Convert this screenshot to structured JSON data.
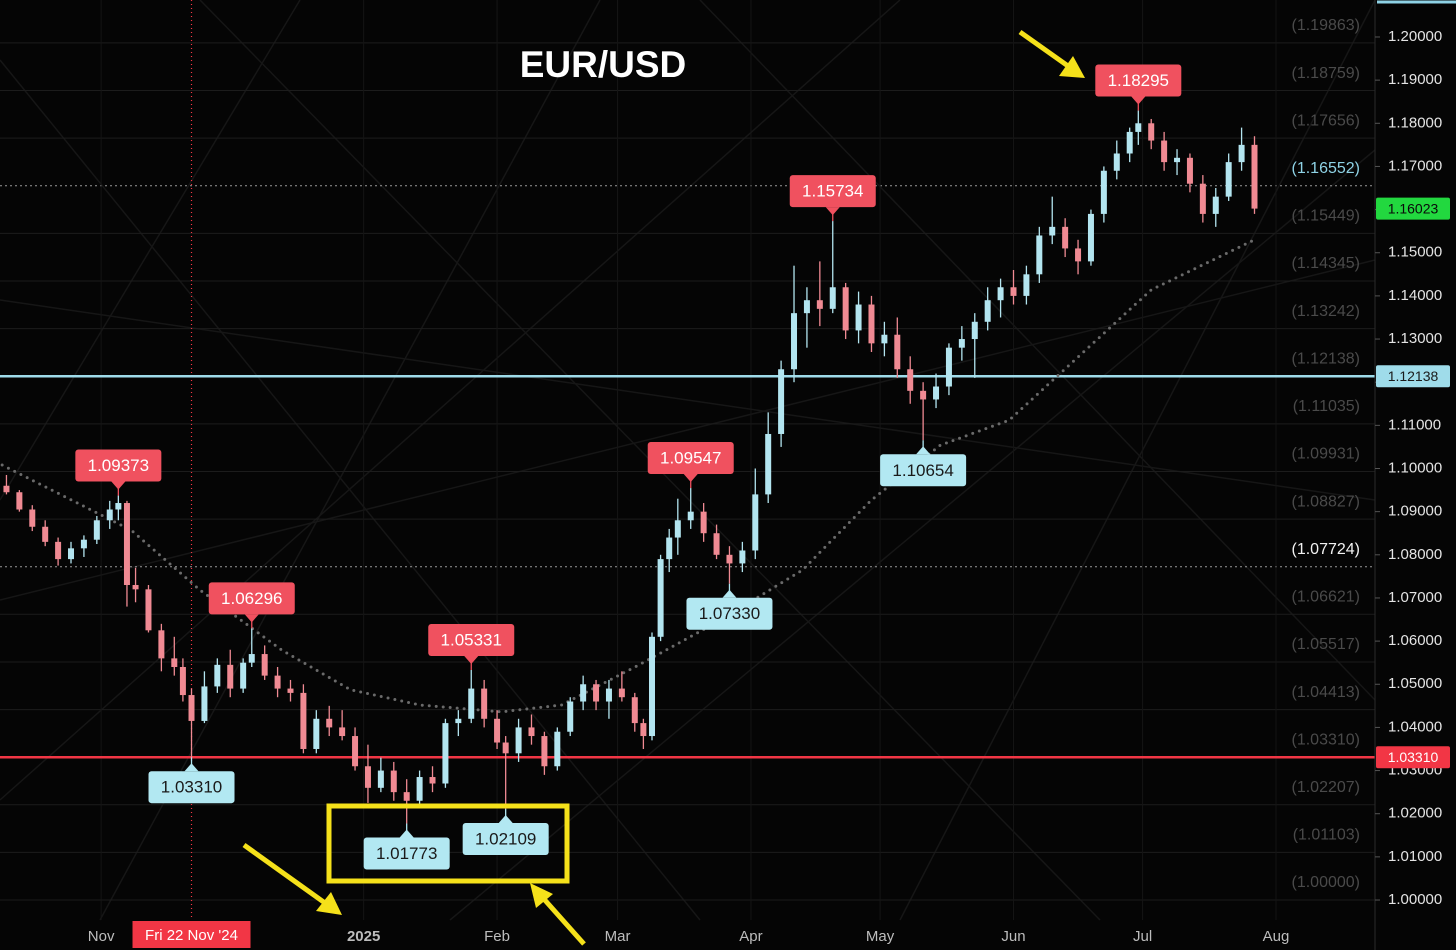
{
  "chart_data": {
    "type": "candlestick",
    "title": "EUR/USD",
    "xlim": [
      -23.5,
      296
    ],
    "ylim": [
      0.99537,
      1.20857
    ],
    "xticks": [
      {
        "value": 0,
        "label": "Nov"
      },
      {
        "value": 61,
        "label": "2025",
        "bold": true
      },
      {
        "value": 92,
        "label": "Feb"
      },
      {
        "value": 120,
        "label": "Mar"
      },
      {
        "value": 151,
        "label": "Apr"
      },
      {
        "value": 181,
        "label": "May"
      },
      {
        "value": 212,
        "label": "Jun"
      },
      {
        "value": 242,
        "label": "Jul"
      },
      {
        "value": 273,
        "label": "Aug"
      }
    ],
    "yticks": [
      {
        "value": 1.0,
        "label": "1.00000"
      },
      {
        "value": 1.01,
        "label": "1.01000"
      },
      {
        "value": 1.02,
        "label": "1.02000"
      },
      {
        "value": 1.03,
        "label": "1.03000"
      },
      {
        "value": 1.04,
        "label": "1.04000"
      },
      {
        "value": 1.05,
        "label": "1.05000"
      },
      {
        "value": 1.06,
        "label": "1.06000"
      },
      {
        "value": 1.07,
        "label": "1.07000"
      },
      {
        "value": 1.08,
        "label": "1.08000"
      },
      {
        "value": 1.09,
        "label": "1.09000"
      },
      {
        "value": 1.1,
        "label": "1.10000"
      },
      {
        "value": 1.11,
        "label": "1.11000"
      },
      {
        "value": 1.12,
        "label": "1.12000"
      },
      {
        "value": 1.13,
        "label": "1.13000"
      },
      {
        "value": 1.14,
        "label": "1.14000"
      },
      {
        "value": 1.15,
        "label": "1.15000"
      },
      {
        "value": 1.16,
        "label": "1.16000"
      },
      {
        "value": 1.17,
        "label": "1.17000"
      },
      {
        "value": 1.18,
        "label": "1.18000"
      },
      {
        "value": 1.19,
        "label": "1.19000"
      },
      {
        "value": 1.2,
        "label": "1.20000"
      }
    ],
    "levels": [
      {
        "value": 1.19863,
        "label": "(1.19863)",
        "color": "#4a4a4a"
      },
      {
        "value": 1.18759,
        "label": "(1.18759)",
        "color": "#4a4a4a"
      },
      {
        "value": 1.17656,
        "label": "(1.17656)",
        "color": "#4a4a4a"
      },
      {
        "value": 1.16552,
        "label": "(1.16552)",
        "color": "#8fd3e6",
        "dotted": true
      },
      {
        "value": 1.15449,
        "label": "(1.15449)",
        "color": "#4a4a4a"
      },
      {
        "value": 1.14345,
        "label": "(1.14345)",
        "color": "#4a4a4a"
      },
      {
        "value": 1.13242,
        "label": "(1.13242)",
        "color": "#4a4a4a"
      },
      {
        "value": 1.12138,
        "label": "(1.12138)",
        "color": "#4a4a4a"
      },
      {
        "value": 1.11035,
        "label": "(1.11035)",
        "color": "#4a4a4a"
      },
      {
        "value": 1.09931,
        "label": "(1.09931)",
        "color": "#4a4a4a"
      },
      {
        "value": 1.08827,
        "label": "(1.08827)",
        "color": "#4a4a4a"
      },
      {
        "value": 1.07724,
        "label": "(1.07724)",
        "color": "#f2f2f2",
        "dotted": true
      },
      {
        "value": 1.06621,
        "label": "(1.06621)",
        "color": "#4a4a4a"
      },
      {
        "value": 1.05517,
        "label": "(1.05517)",
        "color": "#4a4a4a"
      },
      {
        "value": 1.04413,
        "label": "(1.04413)",
        "color": "#4a4a4a"
      },
      {
        "value": 1.0331,
        "label": "(1.03310)",
        "color": "#4a4a4a"
      },
      {
        "value": 1.02207,
        "label": "(1.02207)",
        "color": "#4a4a4a"
      },
      {
        "value": 1.01103,
        "label": "(1.01103)",
        "color": "#4a4a4a"
      },
      {
        "value": 1.0,
        "label": "(1.00000)",
        "color": "#4a4a4a"
      }
    ],
    "up_color": "#b3e5f0",
    "down_color": "#f08a93",
    "candles": {
      "x": [
        -22,
        -19,
        -16,
        -13,
        -10,
        -7,
        -4,
        -1,
        2,
        4,
        6,
        8,
        11,
        14,
        17,
        19,
        21,
        24,
        27,
        30,
        33,
        35,
        38,
        41,
        44,
        47,
        50,
        53,
        56,
        59,
        62,
        65,
        68,
        71,
        74,
        77,
        80,
        83,
        86,
        89,
        92,
        94,
        97,
        100,
        103,
        106,
        109,
        112,
        115,
        118,
        121,
        124,
        126,
        128,
        130,
        132,
        134,
        137,
        140,
        143,
        146,
        149,
        152,
        155,
        158,
        161,
        164,
        167,
        170,
        173,
        176,
        179,
        182,
        185,
        188,
        191,
        194,
        197,
        200,
        203,
        206,
        209,
        212,
        215,
        218,
        221,
        224,
        227,
        230,
        233,
        236,
        239,
        241,
        244,
        247,
        250,
        253,
        256,
        259,
        262,
        265,
        268
      ],
      "open": [
        1.096,
        1.0945,
        1.0905,
        1.0865,
        1.083,
        1.079,
        1.0815,
        1.0835,
        1.088,
        1.0905,
        1.092,
        1.073,
        1.072,
        1.0625,
        1.056,
        1.054,
        1.0475,
        1.0415,
        1.0495,
        1.0545,
        1.049,
        1.055,
        1.057,
        1.052,
        1.049,
        1.048,
        1.035,
        1.042,
        1.04,
        1.038,
        1.031,
        1.026,
        1.03,
        1.025,
        1.023,
        1.0285,
        1.027,
        1.041,
        1.042,
        1.049,
        1.042,
        1.0365,
        1.034,
        1.04,
        1.038,
        1.031,
        1.039,
        1.046,
        1.05,
        1.046,
        1.049,
        1.047,
        1.041,
        1.038,
        1.061,
        1.079,
        1.084,
        1.088,
        1.09,
        1.085,
        1.08,
        1.078,
        1.081,
        1.094,
        1.108,
        1.123,
        1.136,
        1.139,
        1.137,
        1.142,
        1.132,
        1.138,
        1.129,
        1.131,
        1.123,
        1.118,
        1.116,
        1.119,
        1.128,
        1.13,
        1.134,
        1.139,
        1.142,
        1.14,
        1.145,
        1.154,
        1.156,
        1.151,
        1.148,
        1.159,
        1.169,
        1.173,
        1.178,
        1.18,
        1.176,
        1.171,
        1.172,
        1.166,
        1.159,
        1.163,
        1.171,
        1.175
      ],
      "high": [
        1.0985,
        1.095,
        1.0915,
        1.088,
        1.084,
        1.083,
        1.0845,
        1.089,
        1.0925,
        1.09373,
        1.0925,
        1.077,
        1.073,
        1.064,
        1.061,
        1.056,
        1.049,
        1.053,
        1.056,
        1.058,
        1.056,
        1.06296,
        1.059,
        1.054,
        1.051,
        1.05,
        1.044,
        1.045,
        1.044,
        1.04,
        1.036,
        1.033,
        1.032,
        1.028,
        1.03,
        1.031,
        1.042,
        1.044,
        1.05331,
        1.051,
        1.044,
        1.038,
        1.042,
        1.043,
        1.039,
        1.04,
        1.047,
        1.052,
        1.051,
        1.051,
        1.053,
        1.048,
        1.042,
        1.062,
        1.08,
        1.086,
        1.093,
        1.09547,
        1.092,
        1.087,
        1.082,
        1.083,
        1.1,
        1.113,
        1.125,
        1.147,
        1.142,
        1.148,
        1.15734,
        1.143,
        1.141,
        1.14,
        1.134,
        1.135,
        1.126,
        1.12,
        1.122,
        1.129,
        1.133,
        1.136,
        1.142,
        1.144,
        1.146,
        1.147,
        1.156,
        1.163,
        1.158,
        1.153,
        1.16,
        1.17,
        1.176,
        1.179,
        1.18295,
        1.181,
        1.178,
        1.174,
        1.173,
        1.168,
        1.165,
        1.173,
        1.179,
        1.177
      ],
      "low": [
        1.094,
        1.09,
        1.0855,
        1.082,
        1.0775,
        1.078,
        1.0795,
        1.0825,
        1.086,
        1.088,
        1.068,
        1.069,
        1.062,
        1.053,
        1.052,
        1.046,
        1.0331,
        1.041,
        1.048,
        1.047,
        1.048,
        1.054,
        1.051,
        1.047,
        1.046,
        1.034,
        1.034,
        1.038,
        1.037,
        1.03,
        1.0225,
        1.025,
        1.023,
        1.01773,
        1.022,
        1.025,
        1.026,
        1.038,
        1.041,
        1.04,
        1.035,
        1.02109,
        1.032,
        1.036,
        1.029,
        1.03,
        1.038,
        1.044,
        1.044,
        1.042,
        1.046,
        1.039,
        1.035,
        1.037,
        1.06,
        1.076,
        1.08,
        1.086,
        1.083,
        1.079,
        1.0733,
        1.076,
        1.079,
        1.092,
        1.105,
        1.12,
        1.128,
        1.133,
        1.136,
        1.13,
        1.129,
        1.127,
        1.126,
        1.121,
        1.115,
        1.10654,
        1.114,
        1.117,
        1.125,
        1.121,
        1.132,
        1.135,
        1.138,
        1.138,
        1.143,
        1.152,
        1.149,
        1.145,
        1.147,
        1.157,
        1.167,
        1.171,
        1.175,
        1.174,
        1.169,
        1.168,
        1.164,
        1.157,
        1.156,
        1.162,
        1.169,
        1.159
      ],
      "close": [
        1.0945,
        1.0905,
        1.0865,
        1.083,
        1.079,
        1.0815,
        1.0835,
        1.088,
        1.0905,
        1.092,
        1.073,
        1.072,
        1.0625,
        1.056,
        1.054,
        1.0475,
        1.0415,
        1.0495,
        1.0545,
        1.049,
        1.055,
        1.057,
        1.052,
        1.049,
        1.048,
        1.035,
        1.042,
        1.04,
        1.038,
        1.031,
        1.026,
        1.03,
        1.025,
        1.023,
        1.0285,
        1.027,
        1.041,
        1.042,
        1.049,
        1.042,
        1.0365,
        1.034,
        1.04,
        1.038,
        1.031,
        1.039,
        1.046,
        1.05,
        1.046,
        1.049,
        1.047,
        1.041,
        1.038,
        1.061,
        1.079,
        1.084,
        1.088,
        1.09,
        1.085,
        1.08,
        1.078,
        1.081,
        1.094,
        1.108,
        1.123,
        1.136,
        1.139,
        1.137,
        1.142,
        1.132,
        1.138,
        1.129,
        1.131,
        1.123,
        1.118,
        1.116,
        1.119,
        1.128,
        1.13,
        1.134,
        1.139,
        1.142,
        1.14,
        1.145,
        1.154,
        1.156,
        1.151,
        1.148,
        1.159,
        1.169,
        1.173,
        1.178,
        1.18,
        1.176,
        1.171,
        1.172,
        1.166,
        1.159,
        1.163,
        1.171,
        1.175,
        1.16023
      ]
    },
    "moving_average": {
      "color": "#6a6a6a",
      "x": [
        -23,
        7,
        23,
        42,
        58,
        74,
        93,
        107,
        125,
        144,
        163,
        179,
        195,
        211,
        225,
        244,
        268
      ],
      "values": [
        1.1008,
        1.0857,
        1.0718,
        1.0579,
        1.0487,
        1.0452,
        1.0436,
        1.0452,
        1.0545,
        1.0649,
        1.0765,
        1.0927,
        1.1054,
        1.1112,
        1.124,
        1.1414,
        1.153
      ]
    },
    "annotations": [
      {
        "x": 4,
        "value": 1.09373,
        "label": "1.09373",
        "color": "#f0515f",
        "text_color": "#ffffff"
      },
      {
        "x": 21,
        "value": 1.0331,
        "label": "1.03310",
        "color": "#b2e8f2",
        "text_color": "#1a1a1a"
      },
      {
        "x": 35,
        "value": 1.06296,
        "label": "1.06296",
        "color": "#f0515f",
        "text_color": "#ffffff"
      },
      {
        "x": 71,
        "value": 1.01773,
        "label": "1.01773",
        "color": "#b2e8f2",
        "text_color": "#1a1a1a"
      },
      {
        "x": 86,
        "value": 1.05331,
        "label": "1.05331",
        "color": "#f0515f",
        "text_color": "#ffffff"
      },
      {
        "x": 94,
        "value": 1.02109,
        "label": "1.02109",
        "color": "#b2e8f2",
        "text_color": "#1a1a1a"
      },
      {
        "x": 137,
        "value": 1.09547,
        "label": "1.09547",
        "color": "#f0515f",
        "text_color": "#ffffff"
      },
      {
        "x": 146,
        "value": 1.0733,
        "label": "1.07330",
        "color": "#b2e8f2",
        "text_color": "#1a1a1a"
      },
      {
        "x": 170,
        "value": 1.15734,
        "label": "1.15734",
        "color": "#f0515f",
        "text_color": "#ffffff"
      },
      {
        "x": 191,
        "value": 1.10654,
        "label": "1.10654",
        "color": "#b2e8f2",
        "text_color": "#1a1a1a"
      },
      {
        "x": 241,
        "value": 1.18295,
        "label": "1.18295",
        "color": "#f0515f",
        "text_color": "#ffffff"
      }
    ],
    "price_lines": [
      {
        "value": 1.0331,
        "label": "1.03310",
        "color": "#f23645",
        "text_color": "#ffffff"
      },
      {
        "value": 1.12138,
        "label": "1.12138",
        "color": "#9fdcea",
        "text_color": "#1a1a1a"
      }
    ],
    "last_price": {
      "value": 1.16023,
      "label": "1.16023",
      "color": "#22d83f",
      "text_color": "#0a0a0a"
    },
    "crosshair": {
      "x": 21,
      "label": "Fri 22 Nov '24",
      "color": "#f23645"
    }
  }
}
